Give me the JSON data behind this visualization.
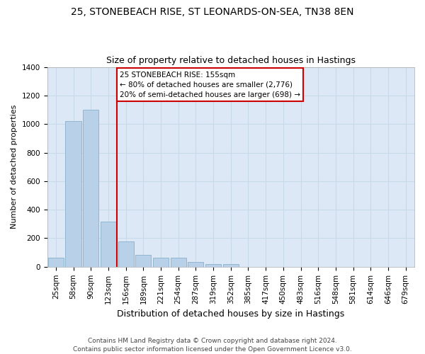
{
  "title1": "25, STONEBEACH RISE, ST LEONARDS-ON-SEA, TN38 8EN",
  "title2": "Size of property relative to detached houses in Hastings",
  "xlabel": "Distribution of detached houses by size in Hastings",
  "ylabel": "Number of detached properties",
  "footer": "Contains HM Land Registry data © Crown copyright and database right 2024.\nContains public sector information licensed under the Open Government Licence v3.0.",
  "bin_labels": [
    "25sqm",
    "58sqm",
    "90sqm",
    "123sqm",
    "156sqm",
    "189sqm",
    "221sqm",
    "254sqm",
    "287sqm",
    "319sqm",
    "352sqm",
    "385sqm",
    "417sqm",
    "450sqm",
    "483sqm",
    "516sqm",
    "548sqm",
    "581sqm",
    "614sqm",
    "646sqm",
    "679sqm"
  ],
  "bar_values": [
    65,
    1020,
    1100,
    315,
    180,
    85,
    65,
    65,
    35,
    20,
    20,
    0,
    0,
    0,
    0,
    0,
    0,
    0,
    0,
    0,
    0
  ],
  "bar_color": "#b8d0e8",
  "bar_edge_color": "#8ab0cc",
  "red_line_index": 4,
  "annotation_text": "25 STONEBEACH RISE: 155sqm\n← 80% of detached houses are smaller (2,776)\n20% of semi-detached houses are larger (698) →",
  "annotation_box_color": "#ffffff",
  "annotation_box_edge": "#cc0000",
  "ylim": [
    0,
    1400
  ],
  "yticks": [
    0,
    200,
    400,
    600,
    800,
    1000,
    1200,
    1400
  ],
  "grid_color": "#c8daea",
  "plot_bg_color": "#dce8f5",
  "fig_bg_color": "#ffffff",
  "title1_fontsize": 10,
  "title2_fontsize": 9,
  "xlabel_fontsize": 9,
  "ylabel_fontsize": 8,
  "tick_fontsize": 7.5,
  "footer_fontsize": 6.5
}
